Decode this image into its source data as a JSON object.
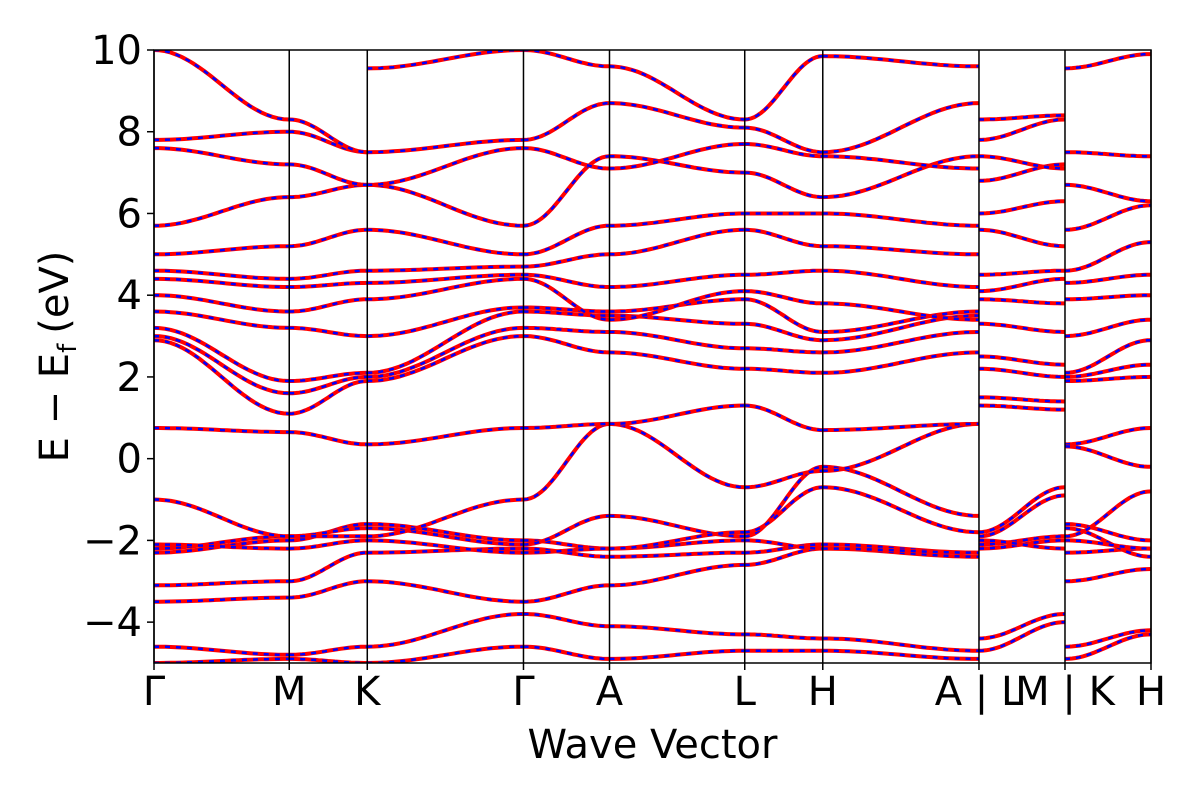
{
  "chart_data": {
    "type": "line",
    "xlabel": "Wave Vector",
    "ylabel": "E − E",
    "ylabel_sub": "f",
    "ylabel_unit": "(eV)",
    "ylim": [
      -5,
      10
    ],
    "yticks": [
      10,
      8,
      6,
      4,
      2,
      0,
      -2,
      -4
    ],
    "ytick_labels": [
      "10",
      "8",
      "6",
      "4",
      "2",
      "0",
      "−2",
      "−4"
    ],
    "kpoints": [
      {
        "label": "Γ",
        "x": 0.0
      },
      {
        "label": "M",
        "x": 1.0
      },
      {
        "label": "K",
        "x": 1.577
      },
      {
        "label": "Γ",
        "x": 2.732
      },
      {
        "label": "A",
        "x": 3.368
      },
      {
        "label": "L",
        "x": 4.368
      },
      {
        "label": "H",
        "x": 4.945
      },
      {
        "label": "A",
        "x": 6.1
      },
      {
        "label": "|",
        "x": 6.1
      },
      {
        "label": "L",
        "x": 6.1
      },
      {
        "label": "M",
        "x": 6.736
      },
      {
        "label": "|",
        "x": 6.736
      },
      {
        "label": "K",
        "x": 6.736
      },
      {
        "label": "H",
        "x": 7.372
      }
    ],
    "vlines": [
      0.0,
      1.0,
      1.577,
      2.732,
      3.368,
      4.368,
      4.945,
      6.1,
      6.736,
      7.372
    ],
    "xlim": [
      0.0,
      7.372
    ],
    "grid": false,
    "legend": "none",
    "segments": [
      {
        "from": "Γ",
        "to": "M",
        "x0": 0.0,
        "x1": 1.0,
        "bands": [
          [
            -5.0,
            -4.9
          ],
          [
            -4.6,
            -4.8
          ],
          [
            -3.5,
            -3.4
          ],
          [
            -3.1,
            -3.0
          ],
          [
            -2.3,
            -2.0
          ],
          [
            -2.2,
            -1.9
          ],
          [
            -2.1,
            -2.2
          ],
          [
            -1.0,
            -1.9
          ],
          [
            0.75,
            0.65
          ],
          [
            2.9,
            1.1
          ],
          [
            3.0,
            1.6
          ],
          [
            3.2,
            1.9
          ],
          [
            3.6,
            3.2
          ],
          [
            4.0,
            3.6
          ],
          [
            4.4,
            4.2
          ],
          [
            4.6,
            4.4
          ],
          [
            5.0,
            5.2
          ],
          [
            5.7,
            6.4
          ],
          [
            7.6,
            7.2
          ],
          [
            7.8,
            8.0
          ],
          [
            10.0,
            8.3
          ]
        ]
      },
      {
        "from": "M",
        "to": "K",
        "x0": 1.0,
        "x1": 1.577,
        "bands": [
          [
            -4.9,
            -5.0
          ],
          [
            -4.8,
            -4.6
          ],
          [
            -3.4,
            -3.0
          ],
          [
            -3.0,
            -2.3
          ],
          [
            -2.0,
            -1.6
          ],
          [
            -1.9,
            -1.7
          ],
          [
            -2.2,
            -2.0
          ],
          [
            -1.9,
            -1.9
          ],
          [
            0.65,
            0.35
          ],
          [
            1.1,
            1.9
          ],
          [
            1.6,
            2.0
          ],
          [
            1.9,
            2.1
          ],
          [
            3.2,
            3.0
          ],
          [
            3.6,
            3.9
          ],
          [
            4.2,
            4.3
          ],
          [
            4.4,
            4.6
          ],
          [
            5.2,
            5.6
          ],
          [
            6.4,
            6.7
          ],
          [
            7.2,
            6.7
          ],
          [
            8.0,
            7.5
          ],
          [
            8.3,
            7.5
          ]
        ]
      },
      {
        "from": "K",
        "to": "Γ",
        "x0": 1.577,
        "x1": 2.732,
        "bands": [
          [
            -5.0,
            -4.6
          ],
          [
            -4.6,
            -3.8
          ],
          [
            -3.0,
            -3.5
          ],
          [
            -2.3,
            -2.2
          ],
          [
            -1.6,
            -2.0
          ],
          [
            -1.7,
            -2.1
          ],
          [
            -2.0,
            -2.3
          ],
          [
            -1.9,
            -1.0
          ],
          [
            0.35,
            0.75
          ],
          [
            1.9,
            3.0
          ],
          [
            2.0,
            3.2
          ],
          [
            2.1,
            3.6
          ],
          [
            3.0,
            3.7
          ],
          [
            3.9,
            4.4
          ],
          [
            4.3,
            4.5
          ],
          [
            4.6,
            4.7
          ],
          [
            5.6,
            5.0
          ],
          [
            6.7,
            5.7
          ],
          [
            6.7,
            7.6
          ],
          [
            7.5,
            7.8
          ],
          [
            9.55,
            10.0
          ]
        ]
      },
      {
        "from": "Γ",
        "to": "A",
        "x0": 2.732,
        "x1": 3.368,
        "bands": [
          [
            -4.6,
            -4.9
          ],
          [
            -3.8,
            -4.1
          ],
          [
            -3.5,
            -3.1
          ],
          [
            -2.2,
            -2.4
          ],
          [
            -2.0,
            -2.2
          ],
          [
            -2.1,
            -1.4
          ],
          [
            -2.3,
            -2.2
          ],
          [
            -1.0,
            0.85
          ],
          [
            0.75,
            0.85
          ],
          [
            3.0,
            2.6
          ],
          [
            3.2,
            3.1
          ],
          [
            3.6,
            3.5
          ],
          [
            3.7,
            3.6
          ],
          [
            4.4,
            3.4
          ],
          [
            4.5,
            4.2
          ],
          [
            4.7,
            5.0
          ],
          [
            5.0,
            5.7
          ],
          [
            5.7,
            7.4
          ],
          [
            7.6,
            7.1
          ],
          [
            7.8,
            8.7
          ],
          [
            10.0,
            9.6
          ]
        ]
      },
      {
        "from": "A",
        "to": "L",
        "x0": 3.368,
        "x1": 4.368,
        "bands": [
          [
            -4.9,
            -4.7
          ],
          [
            -4.1,
            -4.3
          ],
          [
            -3.1,
            -2.6
          ],
          [
            -2.4,
            -2.3
          ],
          [
            -2.2,
            -2.0
          ],
          [
            -1.4,
            -1.9
          ],
          [
            -2.2,
            -1.8
          ],
          [
            0.85,
            -0.7
          ],
          [
            0.85,
            1.3
          ],
          [
            2.6,
            2.2
          ],
          [
            3.1,
            2.7
          ],
          [
            3.5,
            3.3
          ],
          [
            3.6,
            3.9
          ],
          [
            3.4,
            4.1
          ],
          [
            4.2,
            4.5
          ],
          [
            5.0,
            5.6
          ],
          [
            5.7,
            6.0
          ],
          [
            7.4,
            7.0
          ],
          [
            7.1,
            7.7
          ],
          [
            8.7,
            8.1
          ],
          [
            9.6,
            8.3
          ]
        ]
      },
      {
        "from": "L",
        "to": "H",
        "x0": 4.368,
        "x1": 4.945,
        "bands": [
          [
            -4.7,
            -4.7
          ],
          [
            -4.3,
            -4.4
          ],
          [
            -2.6,
            -2.2
          ],
          [
            -2.3,
            -2.1
          ],
          [
            -2.0,
            -2.2
          ],
          [
            -1.9,
            -0.2
          ],
          [
            -1.8,
            -0.7
          ],
          [
            -0.7,
            -0.3
          ],
          [
            1.3,
            0.7
          ],
          [
            2.2,
            2.1
          ],
          [
            2.7,
            2.6
          ],
          [
            3.3,
            2.9
          ],
          [
            3.9,
            3.1
          ],
          [
            4.1,
            3.8
          ],
          [
            4.5,
            4.6
          ],
          [
            5.6,
            5.2
          ],
          [
            6.0,
            6.0
          ],
          [
            7.0,
            6.4
          ],
          [
            7.7,
            7.4
          ],
          [
            8.1,
            7.5
          ],
          [
            8.3,
            9.85
          ]
        ]
      },
      {
        "from": "H",
        "to": "A",
        "x0": 4.945,
        "x1": 6.1,
        "bands": [
          [
            -4.7,
            -4.9
          ],
          [
            -4.4,
            -4.7
          ],
          [
            -2.2,
            -2.4
          ],
          [
            -2.1,
            -2.3
          ],
          [
            -2.2,
            -2.3
          ],
          [
            -0.2,
            -1.4
          ],
          [
            -0.7,
            -1.8
          ],
          [
            -0.3,
            0.85
          ],
          [
            0.7,
            0.85
          ],
          [
            2.1,
            2.6
          ],
          [
            2.6,
            3.1
          ],
          [
            2.9,
            3.5
          ],
          [
            3.1,
            3.6
          ],
          [
            3.8,
            3.4
          ],
          [
            4.6,
            4.2
          ],
          [
            5.2,
            5.0
          ],
          [
            6.0,
            5.7
          ],
          [
            6.4,
            7.4
          ],
          [
            7.4,
            7.1
          ],
          [
            7.5,
            8.7
          ],
          [
            9.85,
            9.6
          ]
        ]
      },
      {
        "from": "L",
        "to": "M",
        "x0": 6.1,
        "x1": 6.736,
        "bands": [
          [
            -4.7,
            -4.0
          ],
          [
            -4.4,
            -3.8
          ],
          [
            -2.2,
            -2.0
          ],
          [
            -2.1,
            -1.9
          ],
          [
            -2.0,
            -2.2
          ],
          [
            -1.9,
            -0.9
          ],
          [
            -1.8,
            -0.7
          ],
          [
            1.3,
            1.2
          ],
          [
            1.5,
            1.4
          ],
          [
            2.2,
            2.0
          ],
          [
            2.5,
            2.3
          ],
          [
            3.3,
            3.1
          ],
          [
            3.9,
            3.8
          ],
          [
            4.1,
            4.4
          ],
          [
            4.5,
            4.6
          ],
          [
            5.6,
            5.2
          ],
          [
            6.0,
            6.3
          ],
          [
            6.8,
            7.2
          ],
          [
            7.4,
            7.1
          ],
          [
            7.8,
            8.3
          ],
          [
            8.3,
            8.4
          ]
        ]
      },
      {
        "from": "K",
        "to": "H",
        "x0": 6.736,
        "x1": 7.372,
        "bands": [
          [
            -4.9,
            -4.3
          ],
          [
            -4.6,
            -4.2
          ],
          [
            -3.0,
            -2.7
          ],
          [
            -2.3,
            -2.2
          ],
          [
            -1.6,
            -2.0
          ],
          [
            -1.7,
            -2.4
          ],
          [
            -2.0,
            -2.2
          ],
          [
            -1.9,
            -0.8
          ],
          [
            0.35,
            0.75
          ],
          [
            0.3,
            -0.2
          ],
          [
            1.9,
            2.0
          ],
          [
            2.0,
            2.3
          ],
          [
            2.1,
            2.9
          ],
          [
            3.0,
            3.4
          ],
          [
            3.9,
            4.0
          ],
          [
            4.3,
            4.5
          ],
          [
            4.6,
            5.3
          ],
          [
            5.6,
            6.2
          ],
          [
            6.7,
            6.3
          ],
          [
            7.5,
            7.4
          ],
          [
            9.55,
            9.9
          ]
        ]
      }
    ]
  }
}
